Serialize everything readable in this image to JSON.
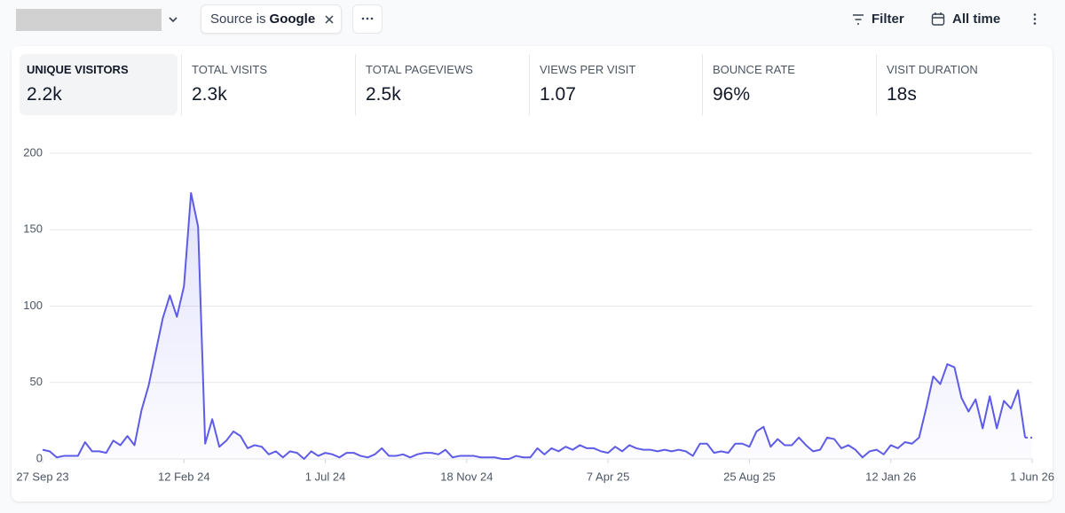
{
  "toolbar": {
    "filter_pill": {
      "prefix": "Source is",
      "value": "Google"
    },
    "filter_button": "Filter",
    "period_button": "All time"
  },
  "metrics": [
    {
      "label": "UNIQUE VISITORS",
      "value": "2.2k"
    },
    {
      "label": "TOTAL VISITS",
      "value": "2.3k"
    },
    {
      "label": "TOTAL PAGEVIEWS",
      "value": "2.5k"
    },
    {
      "label": "VIEWS PER VISIT",
      "value": "1.07"
    },
    {
      "label": "BOUNCE RATE",
      "value": "96%"
    },
    {
      "label": "VISIT DURATION",
      "value": "18s"
    }
  ],
  "chart_data": {
    "type": "line",
    "color": "#5e5ce6",
    "categories": [
      "27 Sep 23",
      null,
      null,
      null,
      null,
      null,
      null,
      null,
      null,
      null,
      null,
      null,
      null,
      null,
      null,
      null,
      null,
      null,
      null,
      null,
      "12 Feb 24",
      null,
      null,
      null,
      null,
      null,
      null,
      null,
      null,
      null,
      null,
      null,
      null,
      null,
      null,
      null,
      null,
      null,
      null,
      null,
      "1 Jul 24",
      null,
      null,
      null,
      null,
      null,
      null,
      null,
      null,
      null,
      null,
      null,
      null,
      null,
      null,
      null,
      null,
      null,
      null,
      null,
      "18 Nov 24",
      null,
      null,
      null,
      null,
      null,
      null,
      null,
      null,
      null,
      null,
      null,
      null,
      null,
      null,
      null,
      null,
      null,
      null,
      null,
      "7 Apr 25",
      null,
      null,
      null,
      null,
      null,
      null,
      null,
      null,
      null,
      null,
      null,
      null,
      null,
      null,
      null,
      null,
      null,
      null,
      null,
      "25 Aug 25",
      null,
      null,
      null,
      null,
      null,
      null,
      null,
      null,
      null,
      null,
      null,
      null,
      null,
      null,
      null,
      null,
      null,
      null,
      null,
      "12 Jan 26",
      null,
      null,
      null,
      null,
      null,
      null,
      null,
      null,
      null,
      null,
      null,
      null,
      null,
      null,
      null,
      null,
      null,
      null,
      null,
      "1 Jun 26"
    ],
    "values": [
      6,
      5,
      1,
      2,
      2,
      2,
      11,
      5,
      5,
      4,
      12,
      9,
      15,
      9,
      32,
      48,
      70,
      92,
      107,
      93,
      113,
      174,
      152,
      10,
      26,
      8,
      12,
      18,
      15,
      7,
      9,
      8,
      3,
      5,
      1,
      5,
      4,
      0,
      5,
      2,
      4,
      3,
      1,
      4,
      4,
      2,
      1,
      3,
      7,
      2,
      2,
      3,
      1,
      3,
      4,
      4,
      3,
      6,
      1,
      2,
      2,
      2,
      1,
      1,
      1,
      0,
      0,
      2,
      1,
      1,
      7,
      3,
      7,
      5,
      8,
      6,
      9,
      7,
      7,
      5,
      4,
      8,
      5,
      9,
      7,
      6,
      6,
      5,
      6,
      5,
      6,
      5,
      2,
      10,
      10,
      4,
      5,
      4,
      10,
      10,
      8,
      18,
      21,
      8,
      13,
      9,
      9,
      14,
      9,
      5,
      6,
      14,
      13,
      7,
      9,
      6,
      1,
      5,
      6,
      3,
      9,
      7,
      11,
      10,
      14,
      33,
      54,
      49,
      62,
      60,
      40,
      31,
      39,
      20,
      41,
      20,
      38,
      33,
      45,
      14,
      14
    ],
    "ylim": [
      0,
      200
    ],
    "yticks": [
      0,
      50,
      100,
      150,
      200
    ],
    "grid": true,
    "dashed_last_segment": true
  }
}
